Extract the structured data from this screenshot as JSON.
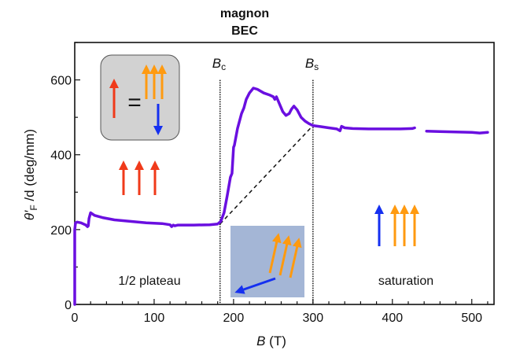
{
  "chart_data": {
    "type": "line",
    "title": [
      "magnon",
      "BEC"
    ],
    "xlabel": "B",
    "xlabel_unit": "(T)",
    "ylabel": "θ′F /d (deg/mm)",
    "ylabel_parts": {
      "theta": "θ′",
      "sub": "F",
      "rest": " /d (deg/mm)"
    },
    "xlim": [
      0,
      528
    ],
    "ylim": [
      0,
      700
    ],
    "xticks": [
      0,
      100,
      200,
      300,
      400,
      500
    ],
    "yticks": [
      0,
      200,
      400,
      600
    ],
    "grid": false,
    "series": [
      {
        "name": "segment-1",
        "color": "#6a0fe0",
        "x": [
          0,
          0,
          1,
          3,
          8,
          14,
          16,
          17,
          18,
          20,
          25,
          35,
          50,
          70,
          90,
          110,
          120,
          122,
          124,
          126,
          130,
          150,
          170,
          180,
          184,
          188,
          192,
          196,
          198,
          200,
          201,
          205,
          210,
          213,
          216,
          220,
          225,
          230,
          238,
          245,
          250,
          252,
          254,
          257,
          262,
          266,
          270,
          273,
          276,
          280,
          285,
          290,
          295,
          300,
          310,
          320,
          330,
          334,
          336,
          340,
          350,
          370,
          390,
          410,
          425,
          428
        ],
        "y": [
          0,
          200,
          218,
          220,
          218,
          212,
          208,
          210,
          230,
          245,
          238,
          232,
          226,
          222,
          218,
          216,
          213,
          208,
          212,
          210,
          212,
          212,
          213,
          215,
          222,
          245,
          290,
          340,
          350,
          420,
          425,
          470,
          510,
          525,
          548,
          565,
          578,
          575,
          565,
          560,
          555,
          548,
          555,
          540,
          515,
          505,
          510,
          522,
          530,
          520,
          500,
          490,
          483,
          478,
          475,
          472,
          469,
          464,
          476,
          472,
          470,
          469,
          469,
          469,
          470,
          472
        ]
      },
      {
        "name": "segment-2",
        "color": "#6a0fe0",
        "x": [
          443,
          460,
          480,
          500,
          510,
          520
        ],
        "y": [
          463,
          462,
          461,
          460,
          458,
          460
        ]
      }
    ],
    "reference_lines": [
      {
        "type": "vertical",
        "label": "B",
        "label_sub": "c",
        "x": 183
      },
      {
        "type": "vertical",
        "label": "B",
        "label_sub": "s",
        "x": 300
      }
    ],
    "dashed_line": {
      "x": [
        183,
        300
      ],
      "y": [
        215,
        478
      ]
    },
    "annotations": [
      "1/2 plateau",
      "saturation"
    ],
    "colors": {
      "curve": "#6a0fe0",
      "red_spin": "#f03a1a",
      "orange_spin": "#ff9a10",
      "blue_spin": "#1530f0",
      "gray_inset": "#d2d2d2",
      "blue_inset": "#a4b6d6"
    }
  }
}
